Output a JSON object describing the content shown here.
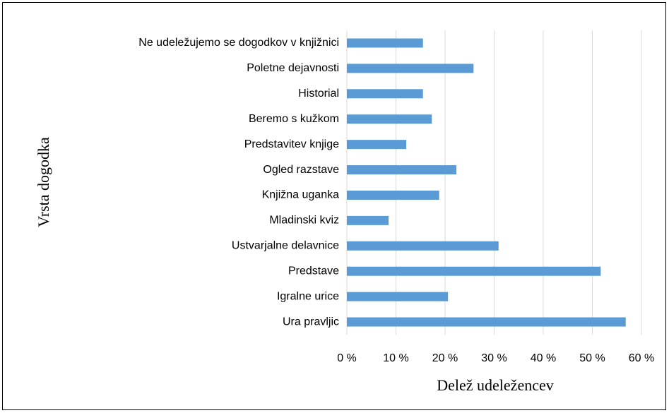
{
  "chart_data": {
    "type": "barh",
    "categories": [
      "Ura pravljic",
      "Igralne urice",
      "Predstave",
      "Ustvarjalne delavnice",
      "Mladinski kviz",
      "Knjižna uganka",
      "Ogled razstave",
      "Predstavitev knjige",
      "Beremo s kužkom",
      "Historial",
      "Poletne dejavnosti",
      "Ne udeležujemo se dogodkov v knjižnici"
    ],
    "values": [
      56.8,
      20.6,
      51.7,
      30.9,
      8.5,
      18.8,
      22.3,
      12.1,
      17.3,
      15.5,
      25.8,
      15.5
    ],
    "color": "#5b9bd5",
    "xlim": [
      0,
      60
    ],
    "xticks": [
      {
        "value": 0,
        "label": "0 %"
      },
      {
        "value": 10,
        "label": "10 %"
      },
      {
        "value": 20,
        "label": "20 %"
      },
      {
        "value": 30,
        "label": "30 %"
      },
      {
        "value": 40,
        "label": "40 %"
      },
      {
        "value": 50,
        "label": "50 %"
      },
      {
        "value": 60,
        "label": "60 %"
      }
    ],
    "grid": true,
    "xlabel": "Delež udeležencev",
    "ylabel": "Vrsta dogodka"
  }
}
